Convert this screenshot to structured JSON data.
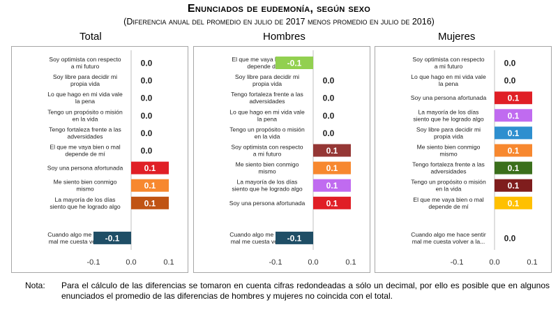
{
  "title": "Enunciados de eudemonía, según sexo",
  "subtitle": "(Diferencia anual del promedio en julio de 2017 menos promedio en julio de 2016)",
  "note": {
    "label": "Nota:",
    "text": "Para el cálculo de las diferencias se tomaron en cuenta cifras redondeadas a sólo un decimal, por ello es posible que en algunos enunciados el promedio de las diferencias de hombres y mujeres no coincida con el total."
  },
  "colors": {
    "bar_dark_blue": "#1f4e66",
    "bar_red": "#e01f26",
    "bar_orange": "#f7882f",
    "bar_brown": "#c05414",
    "bar_green_light": "#92d050",
    "bar_maroon": "#953735",
    "bar_purple": "#c06bf0",
    "bar_blue": "#2e8fcf",
    "bar_dark_green": "#3b6f1c",
    "bar_dark_red": "#7f1d1d",
    "bar_yellow": "#ffc000",
    "zero_line": "#bfbfbf",
    "panel_border": "#a6a6a6"
  },
  "chart_data": [
    {
      "type": "bar",
      "orientation": "horizontal",
      "title": "Total",
      "xlim": [
        -0.1,
        0.1
      ],
      "xticks": [
        "-0.1",
        "0.0",
        "0.1"
      ],
      "grid": false,
      "bars": [
        {
          "label": [
            "Soy optimista con respecto",
            "a mi futuro"
          ],
          "value": 0.0,
          "display": "0.0",
          "color": "#1f4e66"
        },
        {
          "label": [
            "Soy libre para decidir mi",
            "propia vida"
          ],
          "value": 0.0,
          "display": "0.0",
          "color": "#1f4e66"
        },
        {
          "label": [
            "Lo que hago en mi vida vale",
            "la pena"
          ],
          "value": 0.0,
          "display": "0.0",
          "color": "#1f4e66"
        },
        {
          "label": [
            "Tengo un propósito o misión",
            "en la vida"
          ],
          "value": 0.0,
          "display": "0.0",
          "color": "#1f4e66"
        },
        {
          "label": [
            "Tengo fortaleza frente a las",
            "adversidades"
          ],
          "value": 0.0,
          "display": "0.0",
          "color": "#1f4e66"
        },
        {
          "label": [
            "El que me vaya bien o mal",
            "depende de mí"
          ],
          "value": 0.0,
          "display": "0.0",
          "color": "#1f4e66"
        },
        {
          "label": [
            "Soy una persona afortunada"
          ],
          "value": 0.1,
          "display": "0.1",
          "color": "#e01f26"
        },
        {
          "label": [
            "Me siento bien conmigo",
            "mismo"
          ],
          "value": 0.1,
          "display": "0.1",
          "color": "#f7882f"
        },
        {
          "label": [
            "La mayoría de los días",
            "siento que he logrado algo"
          ],
          "value": 0.1,
          "display": "0.1",
          "color": "#c05414"
        },
        {
          "label": [
            "Cuando algo me hace sentir",
            "mal me cuesta volver a la..."
          ],
          "value": -0.1,
          "display": "-0.1",
          "color": "#1f4e66",
          "gap_before": true
        }
      ]
    },
    {
      "type": "bar",
      "orientation": "horizontal",
      "title": "Hombres",
      "xlim": [
        -0.1,
        0.1
      ],
      "xticks": [
        "-0.1",
        "0.0",
        "0.1"
      ],
      "grid": false,
      "bars": [
        {
          "label": [
            "El que me vaya bien o mal",
            "depende de mí"
          ],
          "value": -0.1,
          "display": "-0.1",
          "color": "#92d050"
        },
        {
          "label": [
            "Soy libre para decidir mi",
            "propia vida"
          ],
          "value": 0.0,
          "display": "0.0",
          "color": "#1f4e66"
        },
        {
          "label": [
            "Tengo fortaleza frente a las",
            "adversidades"
          ],
          "value": 0.0,
          "display": "0.0",
          "color": "#1f4e66"
        },
        {
          "label": [
            "Lo que hago en mi vida vale",
            "la pena"
          ],
          "value": 0.0,
          "display": "0.0",
          "color": "#1f4e66"
        },
        {
          "label": [
            "Tengo un propósito o misión",
            "en la vida"
          ],
          "value": 0.0,
          "display": "0.0",
          "color": "#1f4e66"
        },
        {
          "label": [
            "Soy optimista con respecto",
            "a mi futuro"
          ],
          "value": 0.1,
          "display": "0.1",
          "color": "#953735"
        },
        {
          "label": [
            "Me siento bien conmigo",
            "mismo"
          ],
          "value": 0.1,
          "display": "0.1",
          "color": "#f7882f"
        },
        {
          "label": [
            "La mayoría de los días",
            "siento que he logrado algo"
          ],
          "value": 0.1,
          "display": "0.1",
          "color": "#c06bf0"
        },
        {
          "label": [
            "Soy una persona afortunada"
          ],
          "value": 0.1,
          "display": "0.1",
          "color": "#e01f26"
        },
        {
          "label": [
            "Cuando algo me hace sentir",
            "mal me cuesta volver a la..."
          ],
          "value": -0.1,
          "display": "-0.1",
          "color": "#1f4e66",
          "gap_before": true
        }
      ]
    },
    {
      "type": "bar",
      "orientation": "horizontal",
      "title": "Mujeres",
      "xlim": [
        -0.1,
        0.1
      ],
      "xticks": [
        "-0.1",
        "0.0",
        "0.1"
      ],
      "grid": false,
      "bars": [
        {
          "label": [
            "Soy optimista con respecto",
            "a mi futuro"
          ],
          "value": 0.0,
          "display": "0.0",
          "color": "#1f4e66"
        },
        {
          "label": [
            "Lo que hago en mi vida vale",
            "la pena"
          ],
          "value": 0.0,
          "display": "0.0",
          "color": "#1f4e66"
        },
        {
          "label": [
            "Soy una persona afortunada"
          ],
          "value": 0.1,
          "display": "0.1",
          "color": "#e01f26"
        },
        {
          "label": [
            "La mayoría de los días",
            "siento que he logrado algo"
          ],
          "value": 0.1,
          "display": "0.1",
          "color": "#c06bf0"
        },
        {
          "label": [
            "Soy libre para decidir mi",
            "propia vida"
          ],
          "value": 0.1,
          "display": "0.1",
          "color": "#2e8fcf"
        },
        {
          "label": [
            "Me siento bien conmigo",
            "mismo"
          ],
          "value": 0.1,
          "display": "0.1",
          "color": "#f7882f"
        },
        {
          "label": [
            "Tengo fortaleza frente a las",
            "adversidades"
          ],
          "value": 0.1,
          "display": "0.1",
          "color": "#3b6f1c"
        },
        {
          "label": [
            "Tengo un propósito o misión",
            "en la vida"
          ],
          "value": 0.1,
          "display": "0.1",
          "color": "#7f1d1d"
        },
        {
          "label": [
            "El que me vaya bien o mal",
            "depende de mí"
          ],
          "value": 0.1,
          "display": "0.1",
          "color": "#ffc000"
        },
        {
          "label": [
            "Cuando algo me hace sentir",
            "mal me cuesta volver a la..."
          ],
          "value": 0.0,
          "display": "0.0",
          "color": "#1f4e66",
          "gap_before": true
        }
      ]
    }
  ]
}
